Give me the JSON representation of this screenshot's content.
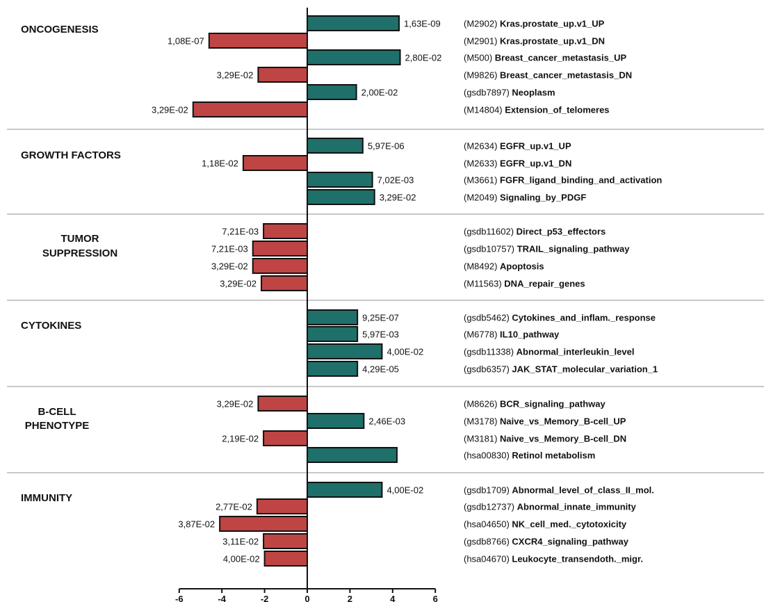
{
  "chart_data": {
    "type": "bar",
    "orientation": "horizontal",
    "xlim": [
      -6,
      6
    ],
    "x_ticks": [
      "-6",
      "-4",
      "-2",
      "0",
      "2",
      "4",
      "6"
    ],
    "colors": {
      "positive": "#1f6f6a",
      "negative": "#bf4444",
      "edge": "#111111",
      "separator": "#c8c8c8"
    },
    "groups": [
      {
        "label": [
          "ONCOGENESIS"
        ],
        "bars": [
          {
            "id": "(M2902)",
            "name": "Kras.prostate_up.v1_UP",
            "value": 4.3,
            "pvalue": "1,63E-09"
          },
          {
            "id": "(M2901)",
            "name": "Kras.prostate_up.v1_DN",
            "value": -4.6,
            "pvalue": "1,08E-07"
          },
          {
            "id": "(M500)",
            "name": "Breast_cancer_metastasis_UP",
            "value": 4.35,
            "pvalue": "2,80E-02"
          },
          {
            "id": "(M9826)",
            "name": "Breast_cancer_metastasis_DN",
            "value": -2.3,
            "pvalue": "3,29E-02"
          },
          {
            "id": "(gsdb7897)",
            "name": "Neoplasm",
            "value": 2.3,
            "pvalue": "2,00E-02"
          },
          {
            "id": "(M14804)",
            "name": "Extension_of_telomeres",
            "value": -5.35,
            "pvalue": "3,29E-02"
          }
        ]
      },
      {
        "label": [
          "GROWTH FACTORS"
        ],
        "bars": [
          {
            "id": "(M2634)",
            "name": "EGFR_up.v1_UP",
            "value": 2.6,
            "pvalue": "5,97E-06"
          },
          {
            "id": "(M2633)",
            "name": "EGFR_up.v1_DN",
            "value": -3.0,
            "pvalue": "1,18E-02"
          },
          {
            "id": "(M3661)",
            "name": "FGFR_ligand_binding_and_activation",
            "value": 3.05,
            "pvalue": "7,02E-03"
          },
          {
            "id": "(M2049)",
            "name": "Signaling_by_PDGF",
            "value": 3.15,
            "pvalue": "3,29E-02"
          }
        ]
      },
      {
        "label": [
          "TUMOR",
          "SUPPRESSION"
        ],
        "bars": [
          {
            "id": "(gsdb11602)",
            "name": "Direct_p53_effectors",
            "value": -2.05,
            "pvalue": "7,21E-03"
          },
          {
            "id": "(gsdb10757)",
            "name": "TRAIL_signaling_pathway",
            "value": -2.55,
            "pvalue": "7,21E-03"
          },
          {
            "id": "(M8492)",
            "name": "Apoptosis",
            "value": -2.55,
            "pvalue": "3,29E-02"
          },
          {
            "id": "(M11563)",
            "name": "DNA_repair_genes",
            "value": -2.15,
            "pvalue": "3,29E-02"
          }
        ]
      },
      {
        "label": [
          "CYTOKINES"
        ],
        "bars": [
          {
            "id": "(gsdb5462)",
            "name": "Cytokines_and_inflam._response",
            "value": 2.35,
            "pvalue": "9,25E-07"
          },
          {
            "id": "(M6778)",
            "name": "IL10_pathway",
            "value": 2.35,
            "pvalue": "5,97E-03"
          },
          {
            "id": "(gsdb11338)",
            "name": "Abnormal_interleukin_level",
            "value": 3.5,
            "pvalue": "4,00E-02"
          },
          {
            "id": "(gsdb6357)",
            "name": "JAK_STAT_molecular_variation_1",
            "value": 2.35,
            "pvalue": "4,29E-05"
          }
        ]
      },
      {
        "label": [
          "B-CELL",
          "PHENOTYPE"
        ],
        "bars": [
          {
            "id": "(M8626)",
            "name": "BCR_signaling_pathway",
            "value": -2.3,
            "pvalue": "3,29E-02"
          },
          {
            "id": "(M3178)",
            "name": "Naive_vs_Memory_B-cell_UP",
            "value": 2.65,
            "pvalue": "2,46E-03"
          },
          {
            "id": "(M3181)",
            "name": "Naive_vs_Memory_B-cell_DN",
            "value": -2.05,
            "pvalue": "2,19E-02"
          },
          {
            "id": "(hsa00830)",
            "name": "Retinol metabolism",
            "value": 4.2,
            "pvalue": ""
          }
        ]
      },
      {
        "label": [
          "IMMUNITY"
        ],
        "bars": [
          {
            "id": "(gsdb1709)",
            "name": "Abnormal_level_of_class_II_mol.",
            "value": 3.5,
            "pvalue": "4,00E-02"
          },
          {
            "id": "(gsdb12737)",
            "name": "Abnormal_innate_immunity",
            "value": -2.35,
            "pvalue": "2,77E-02"
          },
          {
            "id": "(hsa04650)",
            "name": "NK_cell_med._cytotoxicity",
            "value": -4.1,
            "pvalue": "3,87E-02"
          },
          {
            "id": "(gsdb8766)",
            "name": "CXCR4_signaling_pathway",
            "value": -2.05,
            "pvalue": "3,11E-02"
          },
          {
            "id": "(hsa04670)",
            "name": "Leukocyte_transendoth._migr.",
            "value": -2.0,
            "pvalue": "4,00E-02"
          }
        ]
      }
    ]
  }
}
